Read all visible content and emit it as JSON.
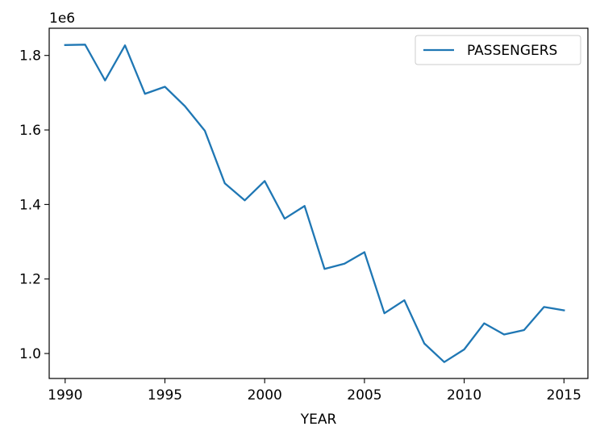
{
  "chart_data": {
    "type": "line",
    "title": "",
    "xlabel": "YEAR",
    "ylabel": "",
    "y_offset_label": "1e6",
    "x": [
      1990,
      1991,
      1992,
      1993,
      1994,
      1995,
      1996,
      1997,
      1998,
      1999,
      2000,
      2001,
      2002,
      2003,
      2004,
      2005,
      2006,
      2007,
      2008,
      2009,
      2010,
      2011,
      2012,
      2013,
      2014,
      2015
    ],
    "series": [
      {
        "name": "PASSENGERS",
        "color": "#1f77b4",
        "values": [
          1828000,
          1829000,
          1733000,
          1827000,
          1697000,
          1716000,
          1664000,
          1598000,
          1457000,
          1411000,
          1463000,
          1362000,
          1396000,
          1227000,
          1241000,
          1272000,
          1108000,
          1143000,
          1027000,
          977000,
          1011000,
          1081000,
          1051000,
          1063000,
          1125000,
          1116000
        ]
      }
    ],
    "xlim": [
      1989.2,
      2016.2
    ],
    "ylim": [
      933000,
      1873000
    ],
    "x_ticks": [
      1990,
      1995,
      2000,
      2005,
      2010,
      2015
    ],
    "x_tick_labels": [
      "1990",
      "1995",
      "2000",
      "2005",
      "2010",
      "2015"
    ],
    "y_ticks": [
      1000000,
      1200000,
      1400000,
      1600000,
      1800000
    ],
    "y_tick_labels": [
      "1.0",
      "1.2",
      "1.4",
      "1.6",
      "1.8"
    ],
    "grid": false,
    "legend_position": "upper right",
    "legend_entries": [
      "PASSENGERS"
    ]
  }
}
